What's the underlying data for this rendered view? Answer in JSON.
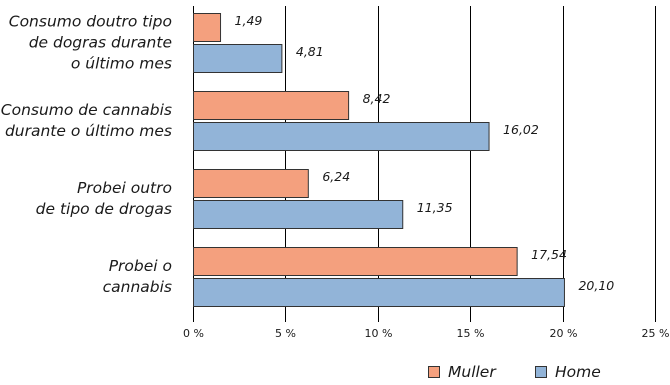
{
  "chart_data": {
    "type": "bar",
    "orientation": "horizontal",
    "categories": [
      [
        "Consumo doutro tipo",
        "de dogras durante",
        "o último mes"
      ],
      [
        "Consumo de cannabis",
        "durante o último mes"
      ],
      [
        "Probei outro",
        "de tipo de drogas"
      ],
      [
        "Probei o",
        "cannabis"
      ]
    ],
    "series": [
      {
        "name": "Muller",
        "color": "#f4a07e",
        "values": [
          1.49,
          8.42,
          6.24,
          17.54
        ],
        "value_labels": [
          "1,49",
          "8,42",
          "6,24",
          "17,54"
        ]
      },
      {
        "name": "Home",
        "color": "#92b4d8",
        "values": [
          4.81,
          16.02,
          11.35,
          20.1
        ],
        "value_labels": [
          "4,81",
          "16,02",
          "11,35",
          "20,10"
        ]
      }
    ],
    "xlim": [
      0,
      25
    ],
    "x_ticks": [
      0,
      5,
      10,
      15,
      20,
      25
    ],
    "x_tick_labels": [
      "0 %",
      "5 %",
      "10 %",
      "15 %",
      "20 %",
      "25 %"
    ],
    "grid": "vertical",
    "legend_position": "bottom-right",
    "bar_stroke_color": "#333333",
    "grid_color": "#000000"
  }
}
